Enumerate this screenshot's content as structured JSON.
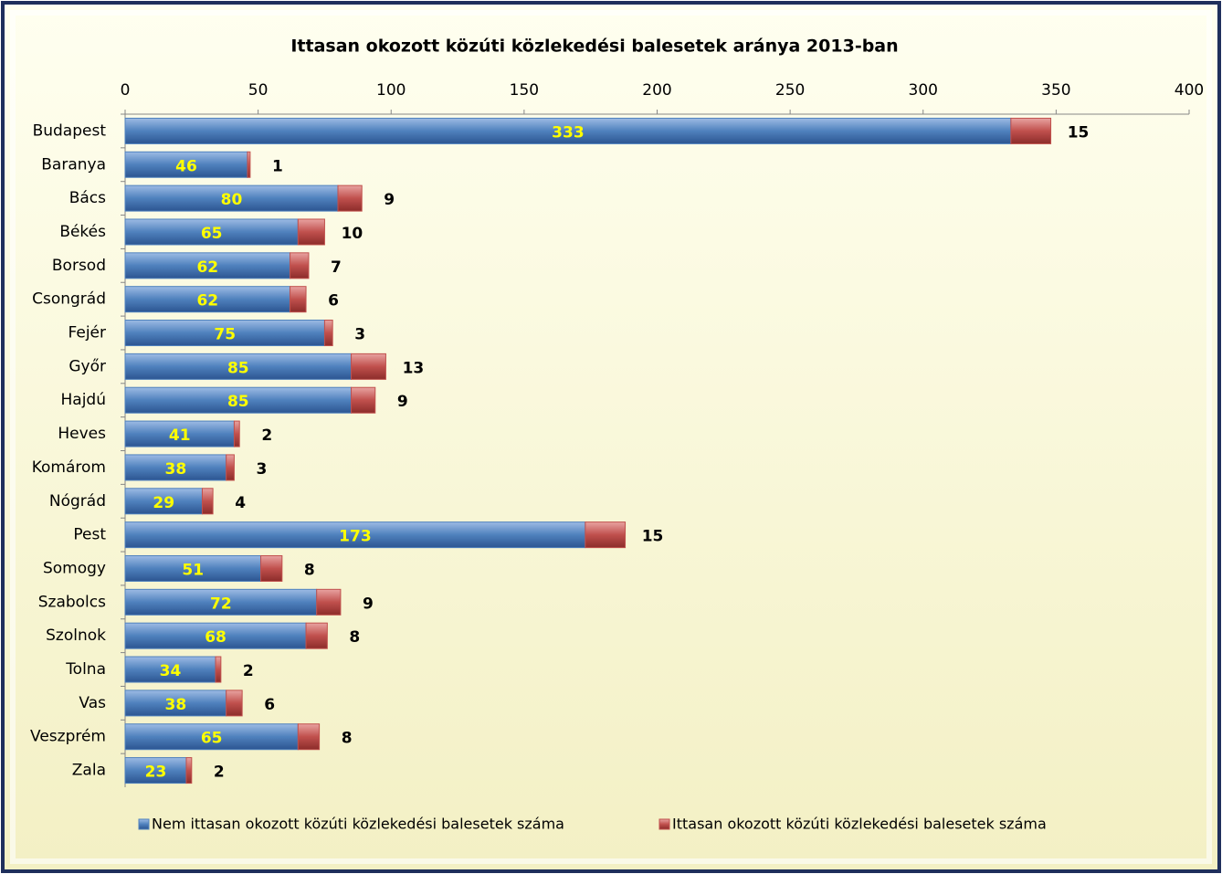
{
  "chart_data": {
    "type": "bar",
    "horizontal": true,
    "stacked": true,
    "title": "Ittasan okozott közúti közlekedési balesetek aránya 2013-ban",
    "categories": [
      "Budapest",
      "Baranya",
      "Bács",
      "Békés",
      "Borsod",
      "Csongrád",
      "Fejér",
      "Győr",
      "Hajdú",
      "Heves",
      "Komárom",
      "Nógrád",
      "Pest",
      "Somogy",
      "Szabolcs",
      "Szolnok",
      "Tolna",
      "Vas",
      "Veszprém",
      "Zala"
    ],
    "series": [
      {
        "name": "Nem ittasan okozott közúti közlekedési balesetek száma",
        "color": "#4f81bd",
        "label_color": "#ffff00",
        "values": [
          333,
          46,
          80,
          65,
          62,
          62,
          75,
          85,
          85,
          41,
          38,
          29,
          173,
          51,
          72,
          68,
          34,
          38,
          65,
          23
        ]
      },
      {
        "name": "Ittasan okozott közúti közlekedési balesetek száma",
        "color": "#c0504d",
        "label_color": "#000000",
        "values": [
          15,
          1,
          9,
          10,
          7,
          6,
          3,
          13,
          9,
          2,
          3,
          4,
          15,
          8,
          9,
          8,
          2,
          6,
          8,
          2
        ]
      }
    ],
    "xlim": [
      0,
      400
    ],
    "xticks": [
      0,
      50,
      100,
      150,
      200,
      250,
      300,
      350,
      400
    ],
    "legend": "bottom"
  }
}
